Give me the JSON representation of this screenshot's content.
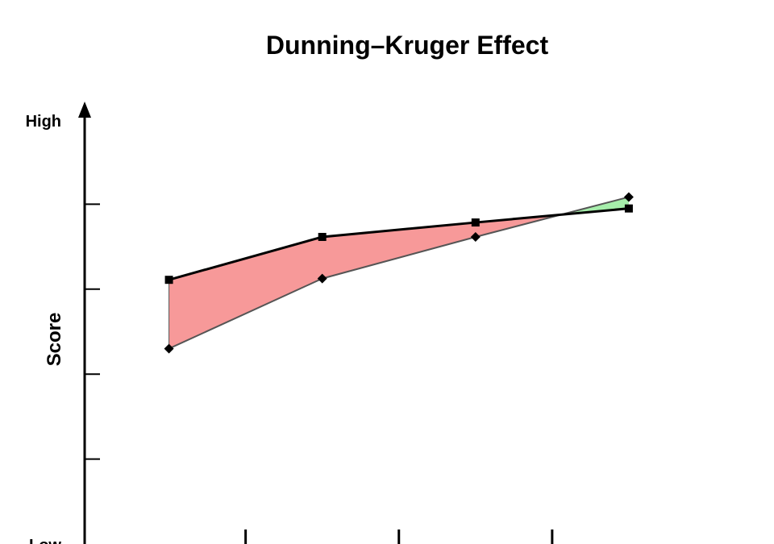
{
  "chart_data": {
    "type": "line",
    "title": "Dunning–Kruger Effect",
    "xlabel": "",
    "ylabel": "Score",
    "y_tick_labels": {
      "high": "High",
      "low": "Low"
    },
    "x": [
      1,
      2,
      3,
      4
    ],
    "xlim": [
      0.45,
      4.7
    ],
    "ylim": [
      0,
      1
    ],
    "y_minor_ticks": [
      0.2,
      0.4,
      0.6,
      0.8
    ],
    "x_minor_ticks": [
      1.5,
      2.5,
      3.5
    ],
    "grid": false,
    "legend": "none",
    "series": [
      {
        "marker": "square",
        "values": [
          0.622,
          0.723,
          0.757,
          0.79
        ]
      },
      {
        "marker": "diamond",
        "values": [
          0.46,
          0.625,
          0.723,
          0.817
        ]
      }
    ],
    "colors": {
      "overestimate_fill": "#f79999",
      "underestimate_fill": "#a6eeab",
      "perceived_line": "#000000",
      "actual_line": "#555555",
      "axis": "#000000"
    }
  }
}
